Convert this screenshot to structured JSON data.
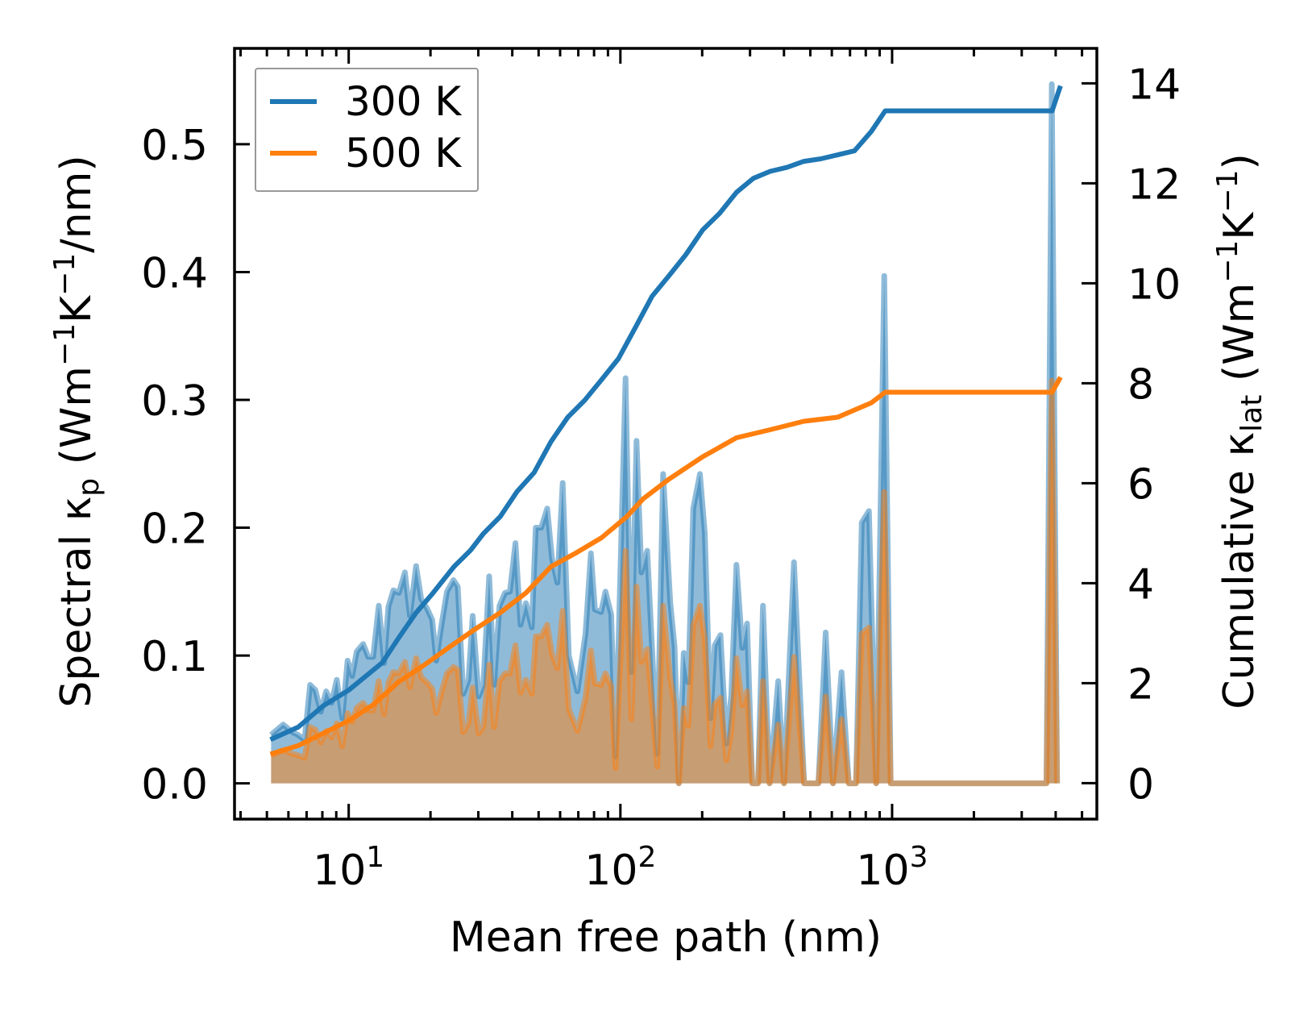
{
  "chart_data": {
    "type": "area+line (twin y-axes, log x)",
    "xlabel": "Mean free path (nm)",
    "xscale": "log",
    "xlim": [
      3.8,
      5670
    ],
    "xticks": [
      {
        "value": 10,
        "base": "10",
        "exp": "1"
      },
      {
        "value": 100,
        "base": "10",
        "exp": "2"
      },
      {
        "value": 1000,
        "base": "10",
        "exp": "3"
      }
    ],
    "ylabel_left": {
      "pre": "Spectral κ",
      "sub": "p",
      "mid": " (Wm",
      "sup1": "−1",
      "k": "K",
      "sup2": "−1",
      "post": "/nm)"
    },
    "ylim_left": [
      -0.028,
      0.575
    ],
    "yticks_left": [
      {
        "value": 0.0,
        "label": "0.0"
      },
      {
        "value": 0.1,
        "label": "0.1"
      },
      {
        "value": 0.2,
        "label": "0.2"
      },
      {
        "value": 0.3,
        "label": "0.3"
      },
      {
        "value": 0.4,
        "label": "0.4"
      },
      {
        "value": 0.5,
        "label": "0.5"
      }
    ],
    "ylabel_right": {
      "pre": "Cumulative κ",
      "sub": "lat",
      "mid": " (Wm",
      "sup1": "−1",
      "k": "K",
      "sup2": "−1",
      "post": ")"
    },
    "ylim_right": [
      -0.72,
      14.7
    ],
    "yticks_right": [
      {
        "value": 0,
        "label": "0"
      },
      {
        "value": 2,
        "label": "2"
      },
      {
        "value": 4,
        "label": "4"
      },
      {
        "value": 6,
        "label": "6"
      },
      {
        "value": 8,
        "label": "8"
      },
      {
        "value": 10,
        "label": "10"
      },
      {
        "value": 12,
        "label": "12"
      },
      {
        "value": 14,
        "label": "14"
      }
    ],
    "legend": {
      "placement": "upper-left",
      "entries": [
        "300 K",
        "500 K"
      ]
    },
    "grid": false,
    "spectral_x": [
      5.18,
      5.74,
      6.21,
      6.5,
      6.88,
      7.21,
      7.54,
      7.89,
      8.26,
      8.65,
      9.04,
      9.47,
      9.91,
      10.3,
      10.7,
      11.3,
      11.8,
      12.3,
      12.9,
      13.5,
      14.0,
      14.6,
      15.3,
      16.1,
      16.8,
      17.7,
      18.5,
      19.4,
      20.3,
      21.0,
      22.0,
      23.0,
      24.3,
      25.2,
      26.4,
      27.6,
      28.6,
      30.1,
      31.3,
      32.9,
      34.3,
      35.9,
      37.6,
      39.2,
      41.1,
      42.9,
      44.9,
      47.2,
      48.8,
      51.1,
      53.8,
      56.0,
      58.6,
      61.3,
      64.6,
      69.5,
      74.4,
      77.9,
      80.6,
      84.9,
      88.1,
      92.5,
      95.9,
      104.5,
      109.7,
      114.6,
      119.4,
      125.5,
      136.7,
      143.6,
      152.5,
      158.2,
      164.1,
      171.1,
      177.9,
      185.4,
      196.2,
      204.4,
      214.6,
      222.5,
      233.6,
      245.5,
      255.9,
      267.4,
      280.8,
      292.6,
      305.8,
      320.8,
      334.7,
      354,
      380.8,
      400,
      435.5,
      474.6,
      535.6,
      569.6,
      605.8,
      651.6,
      692.9,
      736.9,
      773.3,
      821.7,
      873.8,
      935.5,
      988,
      3700,
      3870,
      4050
    ],
    "series": [
      {
        "name": "300 K",
        "color": "#1f77b4",
        "spectral": [
          0.038,
          0.046,
          0.04,
          0.038,
          0.034,
          0.077,
          0.073,
          0.056,
          0.072,
          0.063,
          0.081,
          0.051,
          0.096,
          0.084,
          0.103,
          0.109,
          0.099,
          0.099,
          0.139,
          0.094,
          0.138,
          0.151,
          0.149,
          0.165,
          0.131,
          0.17,
          0.144,
          0.137,
          0.128,
          0.096,
          0.125,
          0.15,
          0.159,
          0.154,
          0.07,
          0.081,
          0.131,
          0.068,
          0.077,
          0.162,
          0.077,
          0.139,
          0.149,
          0.15,
          0.188,
          0.124,
          0.141,
          0.122,
          0.2,
          0.2,
          0.215,
          0.176,
          0.157,
          0.235,
          0.1,
          0.072,
          0.117,
          0.18,
          0.136,
          0.134,
          0.15,
          0.132,
          0.021,
          0.317,
          0.087,
          0.268,
          0.165,
          0.182,
          0.023,
          0.242,
          0.142,
          0.107,
          0.0,
          0.102,
          0.079,
          0.215,
          0.242,
          0.196,
          0.051,
          0.108,
          0.116,
          0.031,
          0.069,
          0.171,
          0.106,
          0.125,
          0.0,
          0.0,
          0.139,
          0.0,
          0.08,
          0.0,
          0.173,
          0.0,
          0.0,
          0.118,
          0.0,
          0.087,
          0.0,
          0.0,
          0.204,
          0.213,
          0.0,
          0.397,
          0.0,
          0.0,
          0.547,
          0.0
        ],
        "cumulative_x": [
          5.15,
          6.52,
          8.07,
          10,
          11.5,
          13.3,
          15.3,
          17.7,
          20.4,
          24.4,
          28.1,
          31.3,
          36.1,
          41.6,
          48.1,
          55.5,
          64.0,
          73.9,
          85.2,
          98.3,
          113.4,
          130.8,
          150.9,
          174,
          200.9,
          231.8,
          267.4,
          308.5,
          355.9,
          410.6,
          473.6,
          546.4,
          630.4,
          727.2,
          838.9,
          943.6,
          3880,
          4168
        ],
        "cumulative": [
          0.87,
          1.12,
          1.55,
          1.86,
          2.13,
          2.41,
          2.91,
          3.41,
          3.8,
          4.33,
          4.66,
          4.99,
          5.33,
          5.83,
          6.21,
          6.83,
          7.32,
          7.66,
          8.07,
          8.49,
          9.11,
          9.74,
          10.15,
          10.57,
          11.07,
          11.4,
          11.82,
          12.1,
          12.24,
          12.32,
          12.44,
          12.49,
          12.57,
          12.65,
          13.04,
          13.45,
          13.45,
          13.95
        ]
      },
      {
        "name": "500 K",
        "color": "#ff7f0e",
        "spectral": [
          0.022,
          0.026,
          0.023,
          0.022,
          0.02,
          0.044,
          0.042,
          0.032,
          0.041,
          0.036,
          0.047,
          0.029,
          0.055,
          0.048,
          0.059,
          0.063,
          0.057,
          0.057,
          0.08,
          0.054,
          0.079,
          0.087,
          0.086,
          0.095,
          0.075,
          0.098,
          0.083,
          0.079,
          0.074,
          0.055,
          0.072,
          0.086,
          0.091,
          0.089,
          0.04,
          0.047,
          0.075,
          0.039,
          0.044,
          0.093,
          0.044,
          0.08,
          0.086,
          0.086,
          0.108,
          0.071,
          0.081,
          0.07,
          0.115,
          0.115,
          0.124,
          0.101,
          0.09,
          0.135,
          0.058,
          0.041,
          0.067,
          0.104,
          0.078,
          0.077,
          0.086,
          0.076,
          0.012,
          0.182,
          0.05,
          0.154,
          0.095,
          0.105,
          0.013,
          0.139,
          0.082,
          0.062,
          0.0,
          0.059,
          0.045,
          0.124,
          0.139,
          0.113,
          0.029,
          0.062,
          0.067,
          0.018,
          0.04,
          0.098,
          0.061,
          0.072,
          0.0,
          0.0,
          0.08,
          0.0,
          0.046,
          0.0,
          0.099,
          0.0,
          0.0,
          0.068,
          0.0,
          0.05,
          0.0,
          0.0,
          0.117,
          0.122,
          0.0,
          0.228,
          0.0,
          0.0,
          0.315,
          0.0
        ],
        "cumulative_x": [
          5.15,
          6.52,
          8.07,
          10,
          12.4,
          15.3,
          18.6,
          23.6,
          29.2,
          36.1,
          44.8,
          55.5,
          68.8,
          85.2,
          105.5,
          121.4,
          150.9,
          200.9,
          267.4,
          355.9,
          473.6,
          630.4,
          838.9,
          943.6,
          3880,
          4168
        ],
        "cumulative": [
          0.58,
          0.75,
          1.0,
          1.25,
          1.58,
          2.03,
          2.33,
          2.73,
          3.08,
          3.41,
          3.8,
          4.33,
          4.61,
          4.91,
          5.33,
          5.69,
          6.08,
          6.53,
          6.91,
          7.07,
          7.24,
          7.32,
          7.61,
          7.82,
          7.82,
          8.12
        ]
      }
    ]
  }
}
